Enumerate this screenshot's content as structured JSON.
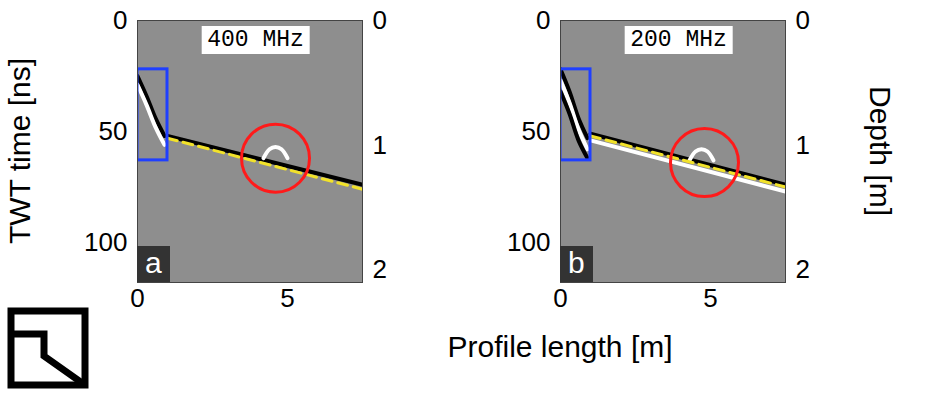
{
  "x_label": "Profile length [m]",
  "y_label": "TWT time [ns]",
  "y2_label": "Depth [m]",
  "chart_data": [
    {
      "type": "line",
      "panel": "a",
      "title": "400 MHz",
      "xlim": [
        0,
        7.5
      ],
      "xticks": [
        0,
        5
      ],
      "ylim": [
        0,
        118
      ],
      "yticks": [
        0,
        50,
        100
      ],
      "y2lim": [
        0,
        2.1
      ],
      "y2ticks": [
        0,
        1,
        2
      ],
      "series": [
        {
          "color": "#000000",
          "line_style": "solid",
          "x": [
            0,
            0.3,
            0.6,
            0.9
          ],
          "values": [
            25,
            34,
            44,
            52
          ]
        },
        {
          "color": "#ffffff",
          "line_style": "solid",
          "x": [
            0,
            0.3,
            0.6,
            0.9
          ],
          "values": [
            29,
            38,
            48,
            56
          ]
        },
        {
          "color": "#000000",
          "line_style": "solid",
          "x": [
            1,
            7.5
          ],
          "values": [
            52,
            74
          ]
        },
        {
          "color": "#ffffff",
          "line_style": "solid",
          "x": [
            4.2,
            4.4,
            4.6,
            4.8,
            5.0
          ],
          "values": [
            62,
            58,
            57,
            58,
            62
          ]
        },
        {
          "color": "#f2e22a",
          "line_style": "dashed",
          "x": [
            1,
            7.5
          ],
          "values": [
            53,
            76
          ]
        }
      ],
      "box": {
        "x": [
          0,
          1
        ],
        "y": [
          22,
          63
        ],
        "color": "#1f3fff"
      },
      "circle": {
        "x": 4.6,
        "y": 62,
        "color": "#ff1a1a"
      }
    },
    {
      "type": "line",
      "panel": "b",
      "title": "200 MHz",
      "xlim": [
        0,
        7.5
      ],
      "xticks": [
        0,
        5
      ],
      "ylim": [
        0,
        118
      ],
      "yticks": [
        0,
        50,
        100
      ],
      "y2lim": [
        0,
        2.1
      ],
      "y2ticks": [
        0,
        1,
        2
      ],
      "series": [
        {
          "color": "#000000",
          "line_style": "solid",
          "x": [
            0,
            0.3,
            0.6,
            0.9
          ],
          "values": [
            22,
            32,
            44,
            53
          ]
        },
        {
          "color": "#ffffff",
          "line_style": "solid",
          "x": [
            0,
            0.3,
            0.6,
            0.9
          ],
          "values": [
            27,
            37,
            49,
            58
          ]
        },
        {
          "color": "#000000",
          "line_style": "solid",
          "x": [
            0,
            0.3,
            0.6,
            0.9
          ],
          "values": [
            32,
            42,
            54,
            62
          ]
        },
        {
          "color": "#000000",
          "line_style": "solid",
          "x": [
            1,
            7.5
          ],
          "values": [
            51,
            74
          ]
        },
        {
          "color": "#ffffff",
          "line_style": "solid",
          "x": [
            1,
            7.5
          ],
          "values": [
            54,
            77
          ]
        },
        {
          "color": "#ffffff",
          "line_style": "solid",
          "x": [
            4.3,
            4.5,
            4.7,
            4.9,
            5.1
          ],
          "values": [
            63,
            59,
            58,
            59,
            63
          ]
        },
        {
          "color": "#f2e22a",
          "line_style": "dashed",
          "x": [
            1,
            7.5
          ],
          "values": [
            52,
            75
          ]
        }
      ],
      "box": {
        "x": [
          0,
          1
        ],
        "y": [
          22,
          63
        ],
        "color": "#1f3fff"
      },
      "circle": {
        "x": 4.8,
        "y": 64,
        "color": "#ff1a1a"
      }
    }
  ]
}
